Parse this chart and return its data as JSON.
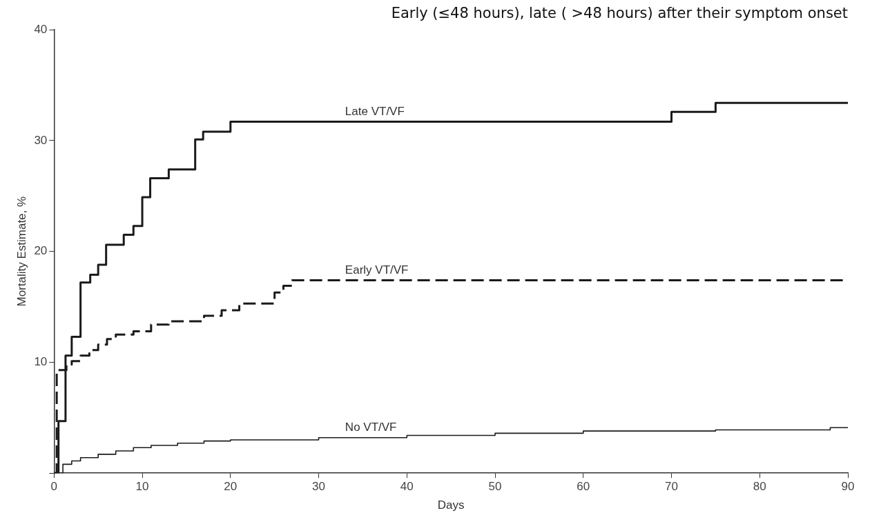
{
  "chart_data": {
    "type": "step",
    "title": "Early (≤48 hours), late ( >48 hours) after their symptom onset",
    "xlabel": "Days",
    "ylabel": "Mortality Estimate, %",
    "xlim": [
      0,
      90
    ],
    "ylim": [
      0,
      40
    ],
    "xticks": [
      0,
      10,
      20,
      30,
      40,
      50,
      60,
      70,
      80,
      90
    ],
    "yticks": [
      {
        "value": 0,
        "label": null
      },
      10,
      20,
      30,
      40
    ],
    "grid": false,
    "legend": false,
    "series": [
      {
        "name": "Late VT/VF",
        "color": "#1a1a1a",
        "line_style": "solid",
        "x": [
          0,
          0.5,
          1.3,
          2,
          3,
          4.1,
          5,
          5.9,
          7.9,
          9,
          10,
          10.9,
          13,
          16,
          16.9,
          20,
          70,
          75,
          90
        ],
        "values": [
          0,
          4.7,
          10.6,
          12.3,
          17.2,
          17.9,
          18.8,
          20.6,
          21.5,
          22.3,
          24.9,
          26.6,
          27.4,
          30.1,
          30.8,
          31.7,
          32.6,
          33.4,
          33.4
        ]
      },
      {
        "name": "Early VT/VF",
        "color": "#1a1a1a",
        "line_style": "dashed",
        "x": [
          0,
          0.3,
          1.4,
          2,
          3,
          4,
          5,
          6,
          7,
          9,
          11,
          13,
          17,
          19,
          21,
          25,
          26,
          27,
          90
        ],
        "values": [
          0,
          9.3,
          9.8,
          10.1,
          10.6,
          11.1,
          11.6,
          12.1,
          12.5,
          12.8,
          13.4,
          13.7,
          14.2,
          14.7,
          15.3,
          16.3,
          16.9,
          17.4,
          17.4
        ]
      },
      {
        "name": "No VT/VF",
        "color": "#1a1a1a",
        "line_style": "solid",
        "x": [
          0,
          1,
          2,
          3,
          5,
          7,
          9,
          11,
          14,
          17,
          20,
          30,
          40,
          50,
          60,
          75,
          88,
          90
        ],
        "values": [
          0,
          0.8,
          1.1,
          1.4,
          1.7,
          2.0,
          2.3,
          2.5,
          2.7,
          2.9,
          3.0,
          3.2,
          3.4,
          3.6,
          3.8,
          3.9,
          4.1,
          4.1
        ]
      }
    ]
  }
}
